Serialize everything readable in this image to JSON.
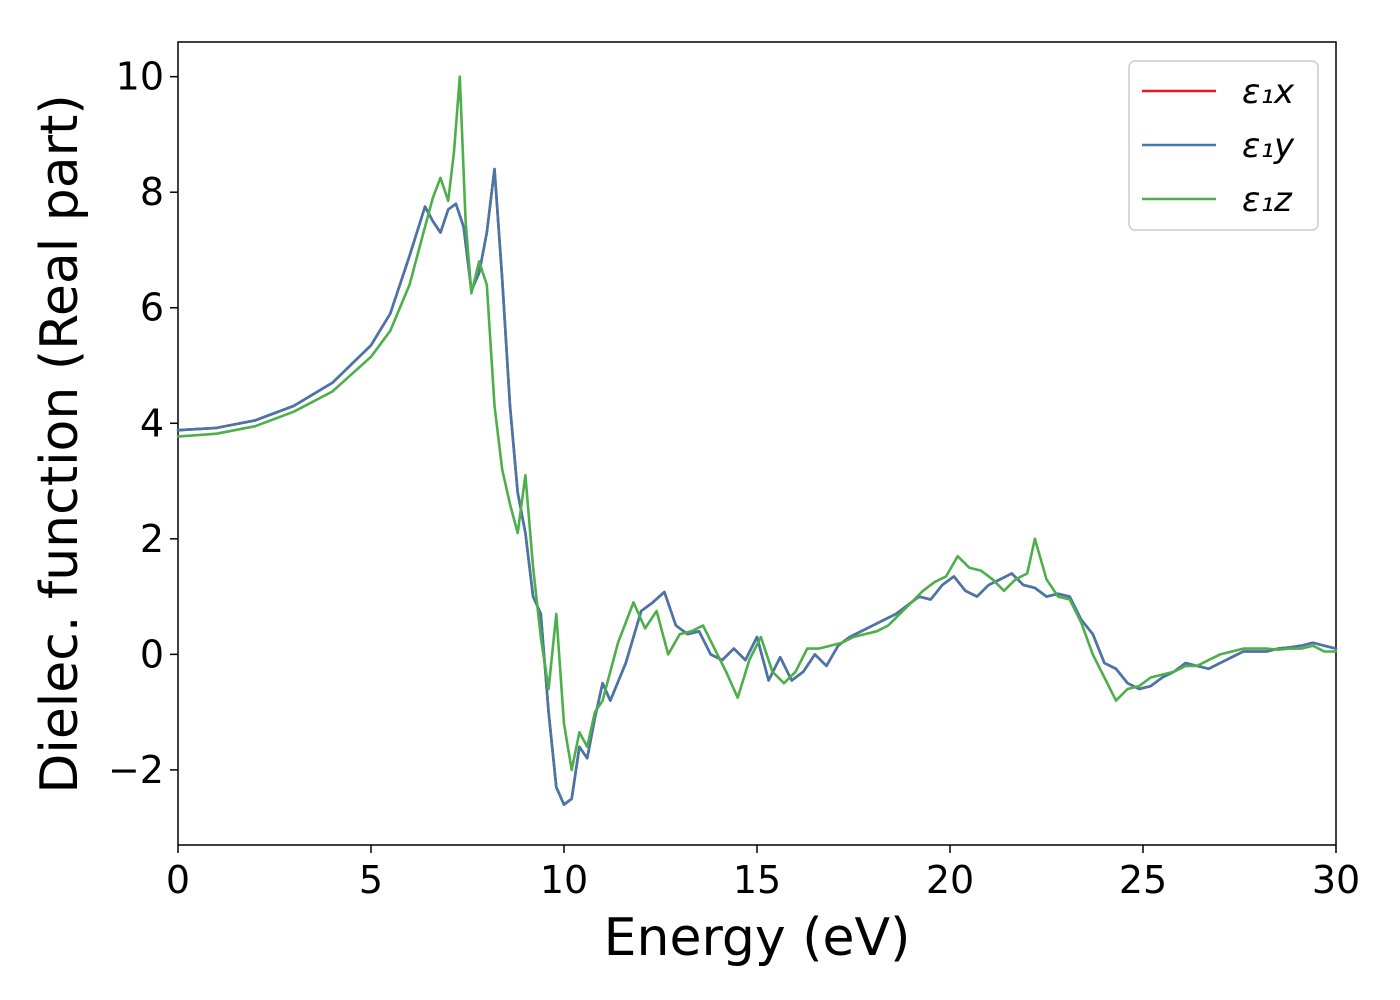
{
  "chart_data": {
    "type": "line",
    "title": "",
    "xlabel": "Energy (eV)",
    "ylabel": "Dielec. function (Real part)",
    "xlim": [
      0,
      30
    ],
    "ylim": [
      -3.3,
      10.6
    ],
    "xticks": [
      0,
      5,
      10,
      15,
      20,
      25,
      30
    ],
    "xtick_labels": [
      "0",
      "5",
      "10",
      "15",
      "20",
      "25",
      "30"
    ],
    "yticks": [
      -2,
      0,
      2,
      4,
      6,
      8,
      10
    ],
    "ytick_labels": [
      "−2",
      "0",
      "2",
      "4",
      "6",
      "8",
      "10"
    ],
    "grid": false,
    "legend_position": "top-right",
    "series": [
      {
        "name": "ε₁x",
        "color": "#e41a1c",
        "x": [
          0,
          1,
          2,
          3,
          4,
          5,
          5.5,
          6,
          6.4,
          6.6,
          6.8,
          7.0,
          7.2,
          7.4,
          7.6,
          7.8,
          8.0,
          8.2,
          8.4,
          8.6,
          8.8,
          9.0,
          9.2,
          9.4,
          9.6,
          9.8,
          10.0,
          10.2,
          10.4,
          10.6,
          10.8,
          11.0,
          11.2,
          11.6,
          12.0,
          12.3,
          12.6,
          12.9,
          13.2,
          13.5,
          13.8,
          14.1,
          14.4,
          14.7,
          15.0,
          15.3,
          15.6,
          15.9,
          16.2,
          16.5,
          16.8,
          17.1,
          17.4,
          17.7,
          18.0,
          18.3,
          18.6,
          18.9,
          19.2,
          19.5,
          19.8,
          20.1,
          20.4,
          20.7,
          21.0,
          21.3,
          21.6,
          21.9,
          22.2,
          22.5,
          22.8,
          23.1,
          23.4,
          23.7,
          24.0,
          24.3,
          24.6,
          24.9,
          25.2,
          25.5,
          25.8,
          26.1,
          26.4,
          26.7,
          27.0,
          27.3,
          27.6,
          27.9,
          28.2,
          28.5,
          28.8,
          29.1,
          29.4,
          29.7,
          30.0
        ],
        "y": [
          3.88,
          3.92,
          4.05,
          4.3,
          4.7,
          5.35,
          5.9,
          6.9,
          7.75,
          7.5,
          7.3,
          7.7,
          7.8,
          7.4,
          6.3,
          6.6,
          7.3,
          8.4,
          6.5,
          4.3,
          2.8,
          2.1,
          1.0,
          0.7,
          -1.0,
          -2.3,
          -2.6,
          -2.5,
          -1.6,
          -1.8,
          -1.1,
          -0.5,
          -0.8,
          -0.15,
          0.75,
          0.9,
          1.08,
          0.5,
          0.35,
          0.4,
          0.0,
          -0.1,
          0.1,
          -0.1,
          0.3,
          -0.45,
          -0.05,
          -0.45,
          -0.3,
          0.0,
          -0.2,
          0.15,
          0.3,
          0.4,
          0.5,
          0.6,
          0.7,
          0.85,
          1.0,
          0.95,
          1.2,
          1.35,
          1.1,
          1.0,
          1.2,
          1.3,
          1.4,
          1.2,
          1.15,
          1.0,
          1.05,
          1.0,
          0.6,
          0.35,
          -0.15,
          -0.25,
          -0.5,
          -0.6,
          -0.55,
          -0.4,
          -0.3,
          -0.15,
          -0.2,
          -0.25,
          -0.15,
          -0.05,
          0.05,
          0.05,
          0.05,
          0.1,
          0.12,
          0.15,
          0.2,
          0.15,
          0.1
        ]
      },
      {
        "name": "ε₁y",
        "color": "#4477aa",
        "x": [
          0,
          1,
          2,
          3,
          4,
          5,
          5.5,
          6,
          6.4,
          6.6,
          6.8,
          7.0,
          7.2,
          7.4,
          7.6,
          7.8,
          8.0,
          8.2,
          8.4,
          8.6,
          8.8,
          9.0,
          9.2,
          9.4,
          9.6,
          9.8,
          10.0,
          10.2,
          10.4,
          10.6,
          10.8,
          11.0,
          11.2,
          11.6,
          12.0,
          12.3,
          12.6,
          12.9,
          13.2,
          13.5,
          13.8,
          14.1,
          14.4,
          14.7,
          15.0,
          15.3,
          15.6,
          15.9,
          16.2,
          16.5,
          16.8,
          17.1,
          17.4,
          17.7,
          18.0,
          18.3,
          18.6,
          18.9,
          19.2,
          19.5,
          19.8,
          20.1,
          20.4,
          20.7,
          21.0,
          21.3,
          21.6,
          21.9,
          22.2,
          22.5,
          22.8,
          23.1,
          23.4,
          23.7,
          24.0,
          24.3,
          24.6,
          24.9,
          25.2,
          25.5,
          25.8,
          26.1,
          26.4,
          26.7,
          27.0,
          27.3,
          27.6,
          27.9,
          28.2,
          28.5,
          28.8,
          29.1,
          29.4,
          29.7,
          30.0
        ],
        "y": [
          3.88,
          3.92,
          4.05,
          4.3,
          4.7,
          5.35,
          5.9,
          6.9,
          7.75,
          7.5,
          7.3,
          7.7,
          7.8,
          7.4,
          6.3,
          6.6,
          7.3,
          8.4,
          6.5,
          4.3,
          2.8,
          2.1,
          1.0,
          0.7,
          -1.0,
          -2.3,
          -2.6,
          -2.5,
          -1.6,
          -1.8,
          -1.1,
          -0.5,
          -0.8,
          -0.15,
          0.75,
          0.9,
          1.08,
          0.5,
          0.35,
          0.4,
          0.0,
          -0.1,
          0.1,
          -0.1,
          0.3,
          -0.45,
          -0.05,
          -0.45,
          -0.3,
          0.0,
          -0.2,
          0.15,
          0.3,
          0.4,
          0.5,
          0.6,
          0.7,
          0.85,
          1.0,
          0.95,
          1.2,
          1.35,
          1.1,
          1.0,
          1.2,
          1.3,
          1.4,
          1.2,
          1.15,
          1.0,
          1.05,
          1.0,
          0.6,
          0.35,
          -0.15,
          -0.25,
          -0.5,
          -0.6,
          -0.55,
          -0.4,
          -0.3,
          -0.15,
          -0.2,
          -0.25,
          -0.15,
          -0.05,
          0.05,
          0.05,
          0.05,
          0.1,
          0.12,
          0.15,
          0.2,
          0.15,
          0.1
        ]
      },
      {
        "name": "ε₁z",
        "color": "#4daf4a",
        "x": [
          0,
          1,
          2,
          3,
          4,
          5,
          5.5,
          6,
          6.4,
          6.6,
          6.8,
          7.0,
          7.15,
          7.3,
          7.45,
          7.6,
          7.8,
          8.0,
          8.2,
          8.4,
          8.6,
          8.8,
          9.0,
          9.2,
          9.4,
          9.6,
          9.8,
          10.0,
          10.2,
          10.4,
          10.6,
          10.8,
          11.0,
          11.4,
          11.8,
          12.1,
          12.4,
          12.7,
          13.0,
          13.3,
          13.6,
          13.9,
          14.2,
          14.5,
          14.8,
          15.1,
          15.4,
          15.7,
          16.0,
          16.3,
          16.6,
          16.9,
          17.2,
          17.5,
          17.8,
          18.1,
          18.4,
          18.7,
          19.0,
          19.3,
          19.6,
          19.9,
          20.2,
          20.5,
          20.8,
          21.1,
          21.4,
          21.7,
          22.0,
          22.2,
          22.5,
          22.8,
          23.1,
          23.4,
          23.7,
          24.0,
          24.3,
          24.6,
          24.9,
          25.2,
          25.5,
          25.8,
          26.1,
          26.4,
          26.7,
          27.0,
          27.3,
          27.6,
          27.9,
          28.2,
          28.5,
          28.8,
          29.1,
          29.4,
          29.7,
          30.0
        ],
        "y": [
          3.77,
          3.82,
          3.95,
          4.2,
          4.55,
          5.15,
          5.6,
          6.4,
          7.4,
          7.9,
          8.25,
          7.85,
          8.7,
          10.0,
          7.5,
          6.25,
          6.8,
          6.4,
          4.3,
          3.2,
          2.6,
          2.1,
          3.1,
          1.5,
          0.3,
          -0.6,
          0.7,
          -1.2,
          -2.0,
          -1.35,
          -1.6,
          -1.0,
          -0.8,
          0.2,
          0.9,
          0.45,
          0.75,
          0.0,
          0.35,
          0.4,
          0.5,
          0.1,
          -0.3,
          -0.75,
          -0.1,
          0.3,
          -0.3,
          -0.5,
          -0.3,
          0.1,
          0.1,
          0.15,
          0.2,
          0.3,
          0.35,
          0.4,
          0.5,
          0.7,
          0.9,
          1.1,
          1.25,
          1.35,
          1.7,
          1.5,
          1.45,
          1.3,
          1.1,
          1.3,
          1.4,
          2.0,
          1.3,
          1.0,
          0.95,
          0.55,
          0.0,
          -0.4,
          -0.8,
          -0.6,
          -0.55,
          -0.4,
          -0.35,
          -0.3,
          -0.2,
          -0.2,
          -0.1,
          0.0,
          0.05,
          0.1,
          0.1,
          0.1,
          0.08,
          0.1,
          0.1,
          0.15,
          0.05,
          0.05
        ]
      }
    ]
  }
}
